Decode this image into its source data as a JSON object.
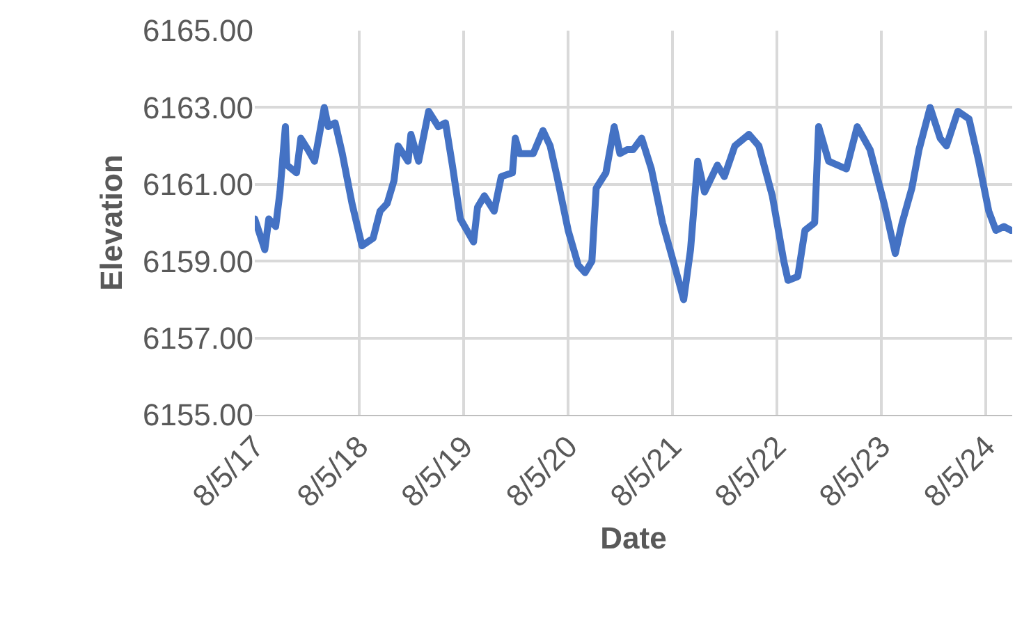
{
  "chart_data": {
    "type": "line",
    "xlabel": "Date",
    "ylabel": "Elevation",
    "x": [
      "2017-08-05",
      "2017-09-09",
      "2017-09-23",
      "2017-10-17",
      "2017-11-01",
      "2017-11-20",
      "2017-11-25",
      "2017-12-29",
      "2018-01-13",
      "2018-02-07",
      "2018-03-02",
      "2018-04-05",
      "2018-04-19",
      "2018-05-13",
      "2018-06-07",
      "2018-07-11",
      "2018-08-15",
      "2018-09-23",
      "2018-10-17",
      "2018-11-11",
      "2018-12-05",
      "2018-12-19",
      "2019-01-23",
      "2019-02-02",
      "2019-03-01",
      "2019-04-05",
      "2019-05-09",
      "2019-06-03",
      "2019-06-27",
      "2019-07-25",
      "2019-09-09",
      "2019-09-23",
      "2019-10-17",
      "2019-11-20",
      "2019-12-15",
      "2020-01-23",
      "2020-02-02",
      "2020-02-17",
      "2020-04-05",
      "2020-05-09",
      "2020-06-03",
      "2020-06-27",
      "2020-08-05",
      "2020-09-09",
      "2020-10-03",
      "2020-10-27",
      "2020-11-11",
      "2020-12-15",
      "2021-01-13",
      "2021-02-02",
      "2021-02-27",
      "2021-03-20",
      "2021-04-19",
      "2021-05-23",
      "2021-07-01",
      "2021-08-15",
      "2021-09-13",
      "2021-10-07",
      "2021-11-01",
      "2021-11-25",
      "2022-01-09",
      "2022-02-02",
      "2022-03-11",
      "2022-04-29",
      "2022-06-03",
      "2022-07-20",
      "2022-08-29",
      "2022-09-13",
      "2022-10-17",
      "2022-11-11",
      "2022-12-15",
      "2022-12-29",
      "2023-02-02",
      "2023-04-05",
      "2023-05-13",
      "2023-06-27",
      "2023-08-15",
      "2023-09-23",
      "2023-10-17",
      "2023-11-20",
      "2023-12-15",
      "2024-01-23",
      "2024-02-27",
      "2024-03-20",
      "2024-04-29",
      "2024-06-07",
      "2024-07-11",
      "2024-08-15",
      "2024-09-09",
      "2024-10-07",
      "2024-11-01"
    ],
    "series": [
      {
        "color": "#4472c4",
        "values": [
          6160.1,
          6159.3,
          6160.1,
          6159.9,
          6160.8,
          6162.5,
          6161.5,
          6161.3,
          6162.2,
          6161.9,
          6161.6,
          6163.0,
          6162.5,
          6162.6,
          6161.8,
          6160.5,
          6159.4,
          6159.6,
          6160.3,
          6160.5,
          6161.1,
          6162.0,
          6161.6,
          6162.3,
          6161.6,
          6162.9,
          6162.5,
          6162.6,
          6161.5,
          6160.1,
          6159.5,
          6160.4,
          6160.7,
          6160.3,
          6161.2,
          6161.3,
          6162.2,
          6161.8,
          6161.8,
          6162.4,
          6162.0,
          6161.2,
          6159.8,
          6158.9,
          6158.7,
          6159.0,
          6160.9,
          6161.3,
          6162.5,
          6161.8,
          6161.9,
          6161.9,
          6162.2,
          6161.4,
          6160.0,
          6158.8,
          6158.0,
          6159.3,
          6161.6,
          6160.8,
          6161.5,
          6161.2,
          6162.0,
          6162.3,
          6162.0,
          6160.7,
          6159.0,
          6158.5,
          6158.6,
          6159.8,
          6160.0,
          6162.5,
          6161.6,
          6161.4,
          6162.5,
          6161.9,
          6160.5,
          6159.2,
          6160.0,
          6160.9,
          6161.9,
          6163.0,
          6162.2,
          6162.0,
          6162.9,
          6162.7,
          6161.6,
          6160.3,
          6159.8,
          6159.9,
          6159.8
        ]
      }
    ],
    "xlim": [
      "2017-08-05",
      "2024-11-05"
    ],
    "xticks": [
      {
        "value": "2017-08-05",
        "label": "8/5/17"
      },
      {
        "value": "2018-08-05",
        "label": "8/5/18"
      },
      {
        "value": "2019-08-05",
        "label": "8/5/19"
      },
      {
        "value": "2020-08-05",
        "label": "8/5/20"
      },
      {
        "value": "2021-08-05",
        "label": "8/5/21"
      },
      {
        "value": "2022-08-05",
        "label": "8/5/22"
      },
      {
        "value": "2023-08-05",
        "label": "8/5/23"
      },
      {
        "value": "2024-08-05",
        "label": "8/5/24"
      }
    ],
    "ylim": [
      6155,
      6165
    ],
    "yticks": [
      {
        "value": 6155,
        "label": "6155.00"
      },
      {
        "value": 6157,
        "label": "6157.00"
      },
      {
        "value": 6159,
        "label": "6159.00"
      },
      {
        "value": 6161,
        "label": "6161.00"
      },
      {
        "value": 6163,
        "label": "6163.00"
      },
      {
        "value": 6165,
        "label": "6165.00"
      }
    ],
    "grid": true,
    "line_style": "solid",
    "marker": "none"
  }
}
